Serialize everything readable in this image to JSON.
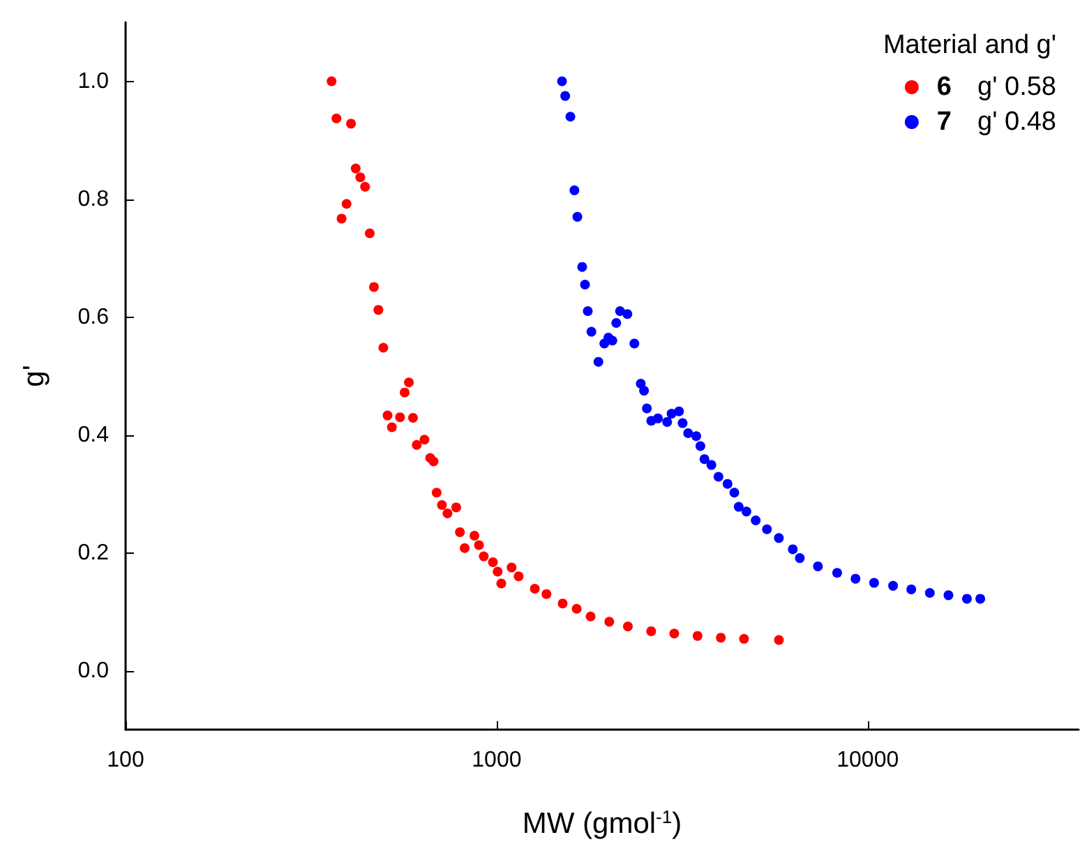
{
  "chart_data": {
    "type": "scatter",
    "xlabel": "MW (gmol$^{-1}$)",
    "ylabel": "g'",
    "legend_title": "Material and g'",
    "legend": "top right",
    "log": "x",
    "marker": "circle",
    "grid": false,
    "xlim": [
      100,
      37000
    ],
    "xticks": [
      100,
      1000,
      10000
    ],
    "ylim": [
      -0.1,
      1.1
    ],
    "yticks": [
      {
        "value": 0,
        "label": "0.0"
      },
      0.2,
      0.4,
      0.6,
      0.8,
      {
        "value": 1,
        "label": "1.0"
      }
    ],
    "series": [
      {
        "name": "6  g' 0.58",
        "color": "#ff0000",
        "x": [
          359,
          370,
          405,
          417,
          429,
          442,
          394,
          382,
          455,
          467,
          480,
          495,
          580,
          565,
          508,
          549,
          595,
          522,
          639,
          609,
          662,
          676,
          689,
          712,
          737,
          778,
          796,
          871,
          820,
          896,
          923,
          977,
          1006,
          1029,
          1097,
          1146,
          1267,
          1362,
          1506,
          1643,
          1791,
          2011,
          2257,
          2608,
          3010,
          3478,
          4019,
          4640,
          5761
        ],
        "values": [
          1.0,
          0.937,
          0.928,
          0.852,
          0.837,
          0.821,
          0.792,
          0.767,
          0.742,
          0.651,
          0.612,
          0.548,
          0.489,
          0.472,
          0.433,
          0.43,
          0.429,
          0.413,
          0.392,
          0.383,
          0.361,
          0.355,
          0.302,
          0.281,
          0.267,
          0.277,
          0.235,
          0.229,
          0.208,
          0.213,
          0.194,
          0.184,
          0.168,
          0.148,
          0.175,
          0.16,
          0.139,
          0.13,
          0.114,
          0.105,
          0.092,
          0.083,
          0.075,
          0.067,
          0.063,
          0.059,
          0.056,
          0.054,
          0.052
        ]
      },
      {
        "name": "7  g' 0.48",
        "color": "#0000ff",
        "x": [
          1500,
          1530,
          1580,
          1620,
          1650,
          1700,
          1730,
          1760,
          1800,
          1880,
          1950,
          2000,
          2050,
          2100,
          2150,
          2250,
          2350,
          2445,
          2495,
          2540,
          2610,
          2720,
          2880,
          2960,
          3100,
          3170,
          3280,
          3450,
          3540,
          3630,
          3790,
          3960,
          4190,
          4370,
          4490,
          4710,
          4990,
          5350,
          5760,
          6280,
          6560,
          7340,
          8270,
          9270,
          10400,
          11700,
          13100,
          14700,
          16500,
          18500,
          20100
        ],
        "values": [
          1.0,
          0.975,
          0.94,
          0.815,
          0.77,
          0.685,
          0.655,
          0.61,
          0.575,
          0.524,
          0.555,
          0.565,
          0.56,
          0.59,
          0.61,
          0.605,
          0.555,
          0.487,
          0.475,
          0.445,
          0.424,
          0.428,
          0.422,
          0.436,
          0.44,
          0.42,
          0.403,
          0.398,
          0.381,
          0.359,
          0.349,
          0.329,
          0.317,
          0.302,
          0.278,
          0.27,
          0.255,
          0.24,
          0.225,
          0.206,
          0.191,
          0.177,
          0.166,
          0.156,
          0.149,
          0.144,
          0.138,
          0.132,
          0.128,
          0.122,
          0.122
        ]
      }
    ]
  }
}
